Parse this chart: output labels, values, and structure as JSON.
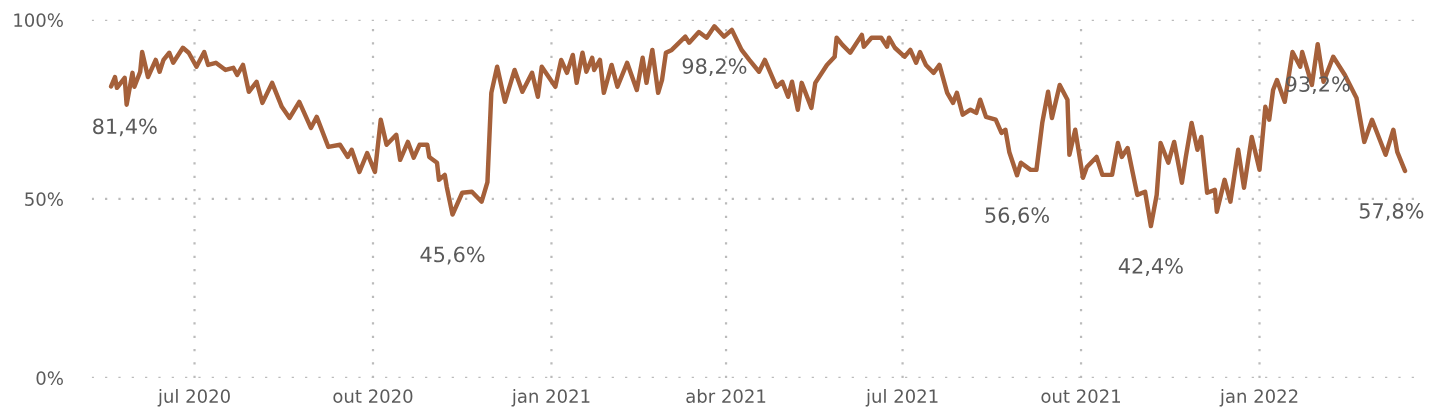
{
  "chart_data": {
    "type": "line",
    "x": [
      "2020-05-19",
      "2020-05-21",
      "2020-05-22",
      "2020-05-26",
      "2020-05-27",
      "2020-05-30",
      "2020-05-31",
      "2020-06-03",
      "2020-06-04",
      "2020-06-07",
      "2020-06-11",
      "2020-06-13",
      "2020-06-15",
      "2020-06-18",
      "2020-06-20",
      "2020-06-25",
      "2020-06-28",
      "2020-07-02",
      "2020-07-06",
      "2020-07-08",
      "2020-07-12",
      "2020-07-17",
      "2020-07-21",
      "2020-07-23",
      "2020-07-26",
      "2020-07-29",
      "2020-08-02",
      "2020-08-05",
      "2020-08-10",
      "2020-08-15",
      "2020-08-19",
      "2020-08-24",
      "2020-08-30",
      "2020-09-02",
      "2020-09-08",
      "2020-09-14",
      "2020-09-18",
      "2020-09-20",
      "2020-09-24",
      "2020-09-28",
      "2020-10-02",
      "2020-10-05",
      "2020-10-08",
      "2020-10-13",
      "2020-10-15",
      "2020-10-19",
      "2020-10-22",
      "2020-10-25",
      "2020-10-29",
      "2020-10-30",
      "2020-11-03",
      "2020-11-04",
      "2020-11-07",
      "2020-11-08",
      "2020-11-11",
      "2020-11-16",
      "2020-11-21",
      "2020-11-26",
      "2020-11-29",
      "2020-12-01",
      "2020-12-04",
      "2020-12-08",
      "2020-12-13",
      "2020-12-17",
      "2020-12-22",
      "2020-12-25",
      "2020-12-27",
      "2021-01-03",
      "2021-01-06",
      "2021-01-09",
      "2021-01-12",
      "2021-01-14",
      "2021-01-17",
      "2021-01-19",
      "2021-01-22",
      "2021-01-23",
      "2021-01-26",
      "2021-01-28",
      "2021-02-01",
      "2021-02-04",
      "2021-02-09",
      "2021-02-14",
      "2021-02-17",
      "2021-02-19",
      "2021-02-22",
      "2021-02-25",
      "2021-02-27",
      "2021-03-01",
      "2021-03-04",
      "2021-03-11",
      "2021-03-13",
      "2021-03-18",
      "2021-03-22",
      "2021-03-26",
      "2021-03-31",
      "2021-04-04",
      "2021-04-09",
      "2021-04-13",
      "2021-04-18",
      "2021-04-21",
      "2021-04-27",
      "2021-04-30",
      "2021-05-03",
      "2021-05-05",
      "2021-05-08",
      "2021-05-10",
      "2021-05-15",
      "2021-05-17",
      "2021-05-23",
      "2021-05-27",
      "2021-05-28",
      "2021-05-31",
      "2021-06-04",
      "2021-06-10",
      "2021-06-11",
      "2021-06-15",
      "2021-06-20",
      "2021-06-23",
      "2021-06-24",
      "2021-06-27",
      "2021-07-02",
      "2021-07-05",
      "2021-07-08",
      "2021-07-10",
      "2021-07-13",
      "2021-07-17",
      "2021-07-20",
      "2021-07-24",
      "2021-07-27",
      "2021-07-29",
      "2021-08-01",
      "2021-08-05",
      "2021-08-08",
      "2021-08-10",
      "2021-08-13",
      "2021-08-18",
      "2021-08-21",
      "2021-08-23",
      "2021-08-25",
      "2021-08-29",
      "2021-08-31",
      "2021-09-05",
      "2021-09-08",
      "2021-09-11",
      "2021-09-14",
      "2021-09-16",
      "2021-09-20",
      "2021-09-24",
      "2021-09-25",
      "2021-09-28",
      "2021-10-02",
      "2021-10-04",
      "2021-10-09",
      "2021-10-12",
      "2021-10-17",
      "2021-10-20",
      "2021-10-22",
      "2021-10-25",
      "2021-10-30",
      "2021-11-03",
      "2021-11-06",
      "2021-11-09",
      "2021-11-11",
      "2021-11-15",
      "2021-11-18",
      "2021-11-22",
      "2021-11-24",
      "2021-11-27",
      "2021-11-30",
      "2021-12-02",
      "2021-12-05",
      "2021-12-09",
      "2021-12-10",
      "2021-12-14",
      "2021-12-17",
      "2021-12-21",
      "2021-12-24",
      "2021-12-28",
      "2022-01-01",
      "2022-01-04",
      "2022-01-06",
      "2022-01-08",
      "2022-01-10",
      "2022-01-14",
      "2022-01-18",
      "2022-01-22",
      "2022-01-23",
      "2022-01-28",
      "2022-01-31",
      "2022-02-03",
      "2022-02-08",
      "2022-02-14",
      "2022-02-20",
      "2022-02-24",
      "2022-02-28",
      "2022-03-05",
      "2022-03-07",
      "2022-03-11",
      "2022-03-13",
      "2022-03-17"
    ],
    "series": [
      {
        "color": "#a5603a",
        "values": [
          81.4,
          84,
          81,
          83.8,
          76.3,
          85.2,
          81.3,
          85.5,
          91,
          84,
          88.8,
          85.5,
          88.8,
          90.8,
          88,
          92.2,
          90.8,
          86.9,
          91,
          87.4,
          88,
          86,
          86.6,
          84.6,
          87.4,
          79.9,
          82.7,
          76.8,
          82.4,
          75.7,
          72.6,
          77.1,
          69.8,
          72.9,
          64.5,
          65.1,
          61.7,
          63.7,
          57.5,
          62.8,
          57.5,
          72.1,
          65.1,
          67.9,
          60.9,
          65.9,
          61.5,
          65.1,
          65.1,
          61.7,
          60.1,
          55.3,
          56.7,
          53.4,
          45.6,
          51.7,
          52,
          49.2,
          54.7,
          79.6,
          86.9,
          77.1,
          86,
          79.9,
          85.2,
          78.5,
          86.9,
          81.3,
          88.8,
          85.2,
          90.2,
          82.4,
          90.8,
          85.5,
          89.4,
          86,
          88.8,
          79.6,
          87.4,
          81.3,
          88,
          80.4,
          89.4,
          82.4,
          91.6,
          79.6,
          83.2,
          90.8,
          91.6,
          95.3,
          93.6,
          96.6,
          95,
          98.2,
          95.3,
          97.2,
          91.6,
          88.8,
          85.5,
          88.8,
          81.3,
          82.7,
          78.5,
          82.7,
          74.9,
          82.4,
          75.4,
          82.4,
          87.4,
          89.7,
          95,
          93,
          90.8,
          95.8,
          92.5,
          95,
          95,
          92.5,
          95,
          92.2,
          89.7,
          91.6,
          88,
          91,
          87.4,
          85.2,
          87.4,
          79.6,
          76.8,
          79.6,
          73.5,
          74.9,
          74,
          77.7,
          72.9,
          72.1,
          68.4,
          69.3,
          63.1,
          56.6,
          60.1,
          58.1,
          58.1,
          71.2,
          79.9,
          72.6,
          81.8,
          77.7,
          62.3,
          69.3,
          55.9,
          58.9,
          61.7,
          56.7,
          56.7,
          65.6,
          61.7,
          64.2,
          51.1,
          52,
          42.4,
          51.1,
          65.6,
          60.1,
          65.9,
          54.5,
          61.7,
          71.2,
          63.7,
          67.3,
          51.7,
          52.5,
          46.4,
          55.3,
          49.2,
          63.7,
          53.1,
          67.3,
          58.1,
          75.7,
          72.1,
          80.4,
          83.2,
          77.1,
          91,
          86.9,
          91,
          81.8,
          93.2,
          82.7,
          89.7,
          84.6,
          78.2,
          65.9,
          72.1,
          65.1,
          62.3,
          69.3,
          63.1,
          57.8
        ]
      }
    ],
    "xlim": [
      "2020-05-09",
      "2022-03-27"
    ],
    "xticks": [
      {
        "value": "2020-07-01",
        "label": "jul 2020"
      },
      {
        "value": "2020-10-01",
        "label": "out 2020"
      },
      {
        "value": "2021-01-01",
        "label": "jan 2021"
      },
      {
        "value": "2021-04-01",
        "label": "abr 2021"
      },
      {
        "value": "2021-07-01",
        "label": "jul 2021"
      },
      {
        "value": "2021-10-01",
        "label": "out 2021"
      },
      {
        "value": "2022-01-01",
        "label": "jan 2022"
      }
    ],
    "ylim": [
      0,
      100
    ],
    "yticks": [
      {
        "value": 0,
        "label": "0%"
      },
      {
        "value": 50,
        "label": "50%"
      },
      {
        "value": 100,
        "label": "100%"
      }
    ],
    "grid": true,
    "legend": false,
    "marker": "none",
    "line_style": "solid",
    "annotations": [
      {
        "text": "81,4%",
        "x": "2020-05-19",
        "y": 81.4
      },
      {
        "text": "45,6%",
        "x": "2020-11-11",
        "y": 45.6
      },
      {
        "text": "98,2%",
        "x": "2021-03-26",
        "y": 98.2
      },
      {
        "text": "56,6%",
        "x": "2021-08-29",
        "y": 56.6
      },
      {
        "text": "42,4%",
        "x": "2021-11-06",
        "y": 42.4
      },
      {
        "text": "93,2%",
        "x": "2022-01-31",
        "y": 93.2
      },
      {
        "text": "57,8%",
        "x": "2022-03-17",
        "y": 57.8
      }
    ]
  }
}
